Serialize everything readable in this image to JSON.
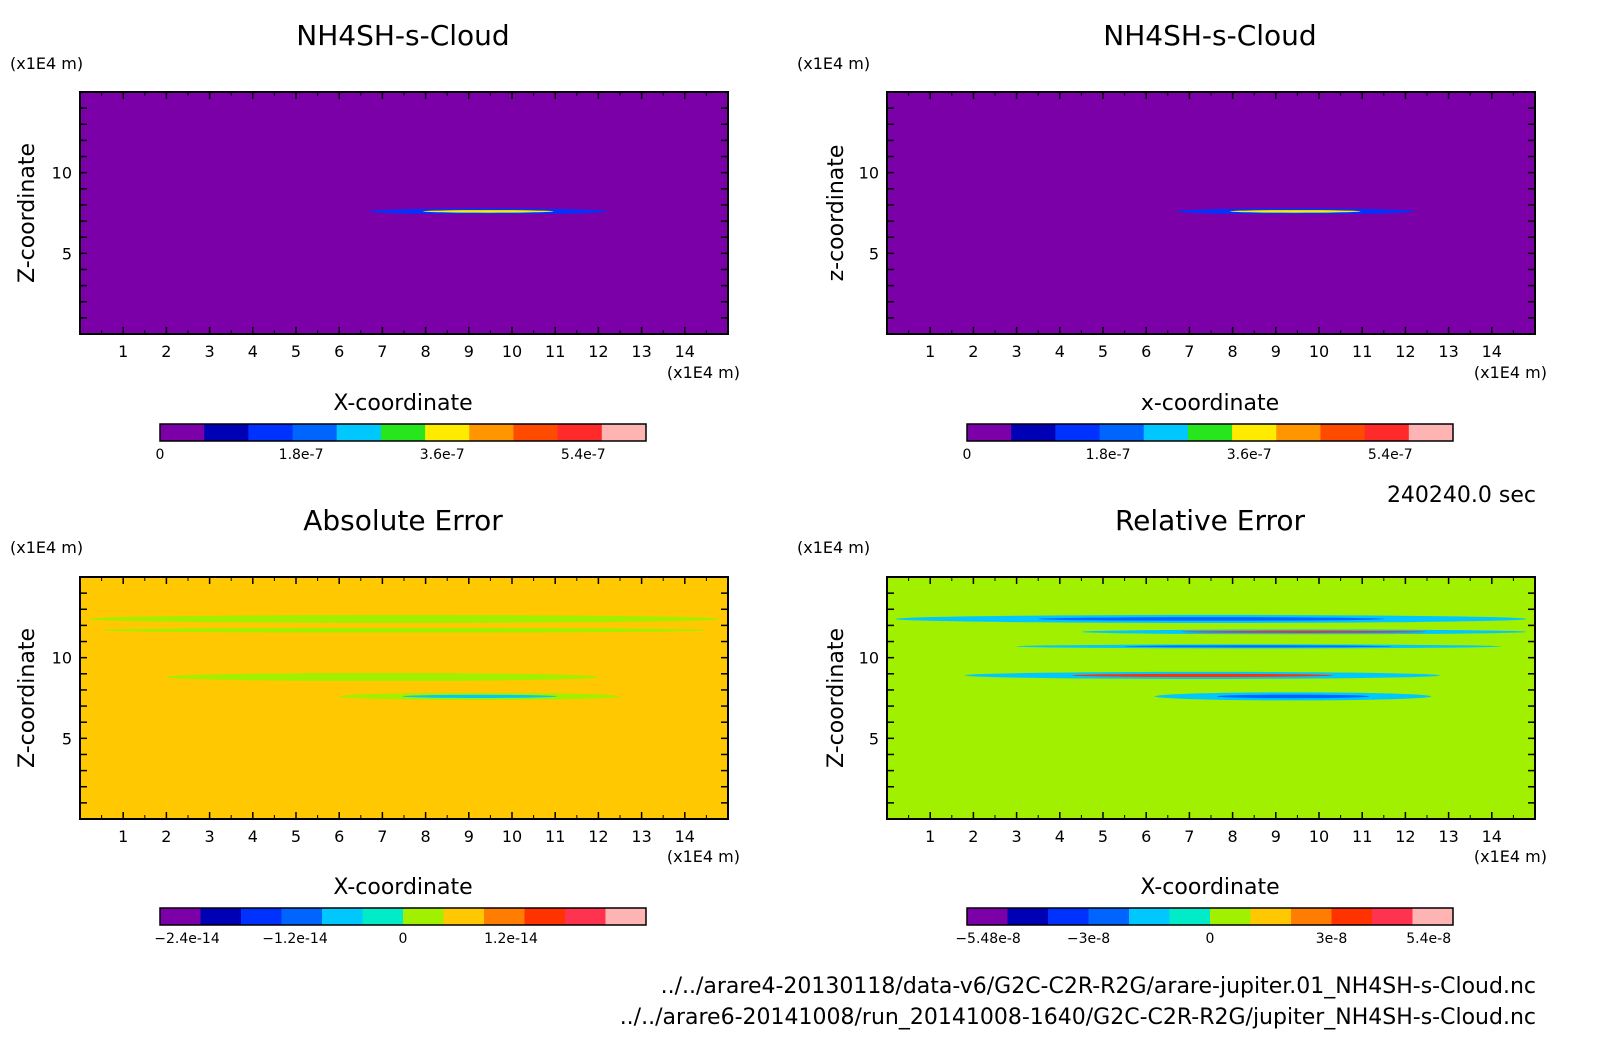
{
  "timestamp": "240240.0 sec",
  "footer": {
    "line1": "../../arare4-20130118/data-v6/G2C-C2R-R2G/arare-jupiter.01_NH4SH-s-Cloud.nc",
    "line2": "../../arare6-20141008/run_20141008-1640/G2C-C2R-R2G/jupiter_NH4SH-s-Cloud.nc"
  },
  "chart_data": [
    {
      "type": "heatmap",
      "title": "NH4SH-s-Cloud",
      "xlabel": "X-coordinate",
      "ylabel": "Z-coordinate",
      "x_unit": "(x1E4 m)",
      "y_unit": "(x1E4 m)",
      "xlim": [
        0,
        15
      ],
      "ylim": [
        0,
        15
      ],
      "xticks": [
        "1",
        "2",
        "3",
        "4",
        "5",
        "6",
        "7",
        "8",
        "9",
        "10",
        "11",
        "12",
        "13",
        "14"
      ],
      "yticks": [
        "5",
        "10"
      ],
      "background": "#7b00a8",
      "colorbar": {
        "colors": [
          "#7b00a8",
          "#0000b4",
          "#0032ff",
          "#0064ff",
          "#00c8ff",
          "#28e61e",
          "#ffeb00",
          "#ff9600",
          "#ff4b00",
          "#ff2a2a",
          "#ffb4b4"
        ],
        "tick_labels": [
          "0",
          "1.8e-7",
          "3.6e-7",
          "5.4e-7"
        ],
        "tick_values": [
          0,
          1.8e-07,
          3.6e-07,
          5.4e-07
        ],
        "range": [
          0,
          6.2e-07
        ]
      },
      "features": [
        {
          "x": [
            6.7,
            12.2
          ],
          "z": 7.6,
          "half_thickness": 0.18,
          "peak_color": "#ffeb00",
          "edge_color": "#0032ff"
        }
      ]
    },
    {
      "type": "heatmap",
      "title": "NH4SH-s-Cloud",
      "xlabel": "x-coordinate",
      "ylabel": "z-coordinate",
      "x_unit": "(x1E4 m)",
      "y_unit": "(x1E4 m)",
      "xlim": [
        0,
        15
      ],
      "ylim": [
        0,
        15
      ],
      "xticks": [
        "1",
        "2",
        "3",
        "4",
        "5",
        "6",
        "7",
        "8",
        "9",
        "10",
        "11",
        "12",
        "13",
        "14"
      ],
      "yticks": [
        "5",
        "10"
      ],
      "background": "#7b00a8",
      "colorbar": {
        "colors": [
          "#7b00a8",
          "#0000b4",
          "#0032ff",
          "#0064ff",
          "#00c8ff",
          "#28e61e",
          "#ffeb00",
          "#ff9600",
          "#ff4b00",
          "#ff2a2a",
          "#ffb4b4"
        ],
        "tick_labels": [
          "0",
          "1.8e-7",
          "3.6e-7",
          "5.4e-7"
        ],
        "tick_values": [
          0,
          1.8e-07,
          3.6e-07,
          5.4e-07
        ],
        "range": [
          0,
          6.2e-07
        ]
      },
      "features": [
        {
          "x": [
            6.7,
            12.2
          ],
          "z": 7.6,
          "half_thickness": 0.18,
          "peak_color": "#ffeb00",
          "edge_color": "#0032ff"
        }
      ]
    },
    {
      "type": "heatmap",
      "title": "Absolute Error",
      "xlabel": "X-coordinate",
      "ylabel": "Z-coordinate",
      "x_unit": "(x1E4 m)",
      "y_unit": "(x1E4 m)",
      "xlim": [
        0,
        15
      ],
      "ylim": [
        0,
        15
      ],
      "xticks": [
        "1",
        "2",
        "3",
        "4",
        "5",
        "6",
        "7",
        "8",
        "9",
        "10",
        "11",
        "12",
        "13",
        "14"
      ],
      "yticks": [
        "5",
        "10"
      ],
      "background": "#ffc800",
      "colorbar": {
        "colors": [
          "#7b00a8",
          "#0000b4",
          "#0032ff",
          "#0064ff",
          "#00c8ff",
          "#00ebc8",
          "#a0f000",
          "#ffc800",
          "#ff7d00",
          "#ff3200",
          "#ff3250",
          "#ffb4b4"
        ],
        "tick_labels": [
          "−2.4e-14",
          "−1.2e-14",
          "0",
          "1.2e-14"
        ],
        "tick_values": [
          -2.4e-14,
          -1.2e-14,
          0,
          1.2e-14
        ],
        "range": [
          -2.7e-14,
          2.7e-14
        ]
      },
      "features": [
        {
          "x": [
            0.2,
            14.8
          ],
          "z": 12.4,
          "half_thickness": 0.25,
          "peak_color": "#a0f000",
          "edge_color": "#a0f000"
        },
        {
          "x": [
            0.5,
            14.5
          ],
          "z": 11.7,
          "half_thickness": 0.15,
          "peak_color": "#a0f000",
          "edge_color": "#a0f000"
        },
        {
          "x": [
            2.0,
            12.0
          ],
          "z": 8.8,
          "half_thickness": 0.25,
          "peak_color": "#a0f000",
          "edge_color": "#a0f000"
        },
        {
          "x": [
            6.0,
            12.5
          ],
          "z": 7.6,
          "half_thickness": 0.22,
          "peak_color": "#00c8ff",
          "edge_color": "#a0f000"
        }
      ]
    },
    {
      "type": "heatmap",
      "title": "Relative Error",
      "xlabel": "X-coordinate",
      "ylabel": "Z-coordinate",
      "x_unit": "(x1E4 m)",
      "y_unit": "(x1E4 m)",
      "xlim": [
        0,
        15
      ],
      "ylim": [
        0,
        15
      ],
      "xticks": [
        "1",
        "2",
        "3",
        "4",
        "5",
        "6",
        "7",
        "8",
        "9",
        "10",
        "11",
        "12",
        "13",
        "14"
      ],
      "yticks": [
        "5",
        "10"
      ],
      "background": "#a0f000",
      "colorbar": {
        "colors": [
          "#7b00a8",
          "#0000b4",
          "#0032ff",
          "#0064ff",
          "#00c8ff",
          "#00ebc8",
          "#a0f000",
          "#ffc800",
          "#ff7d00",
          "#ff3200",
          "#ff3250",
          "#ffb4b4"
        ],
        "tick_labels": [
          "−5.48e-8",
          "−3e-8",
          "0",
          "3e-8",
          "5.4e-8"
        ],
        "tick_values": [
          -5.48e-08,
          -3e-08,
          0,
          3e-08,
          5.4e-08
        ],
        "range": [
          -6e-08,
          6e-08
        ]
      },
      "features": [
        {
          "x": [
            0.2,
            14.8
          ],
          "z": 12.4,
          "half_thickness": 0.25,
          "peak_color": "#0064ff",
          "edge_color": "#00c8ff"
        },
        {
          "x": [
            4.5,
            14.8
          ],
          "z": 11.6,
          "half_thickness": 0.15,
          "peak_color": "#ff3200",
          "edge_color": "#00c8ff"
        },
        {
          "x": [
            3.0,
            14.2
          ],
          "z": 10.7,
          "half_thickness": 0.12,
          "peak_color": "#0064ff",
          "edge_color": "#00c8ff"
        },
        {
          "x": [
            1.8,
            12.8
          ],
          "z": 8.9,
          "half_thickness": 0.22,
          "peak_color": "#ff3200",
          "edge_color": "#00c8ff"
        },
        {
          "x": [
            6.2,
            12.6
          ],
          "z": 7.6,
          "half_thickness": 0.25,
          "peak_color": "#0064ff",
          "edge_color": "#00c8ff"
        }
      ]
    }
  ]
}
